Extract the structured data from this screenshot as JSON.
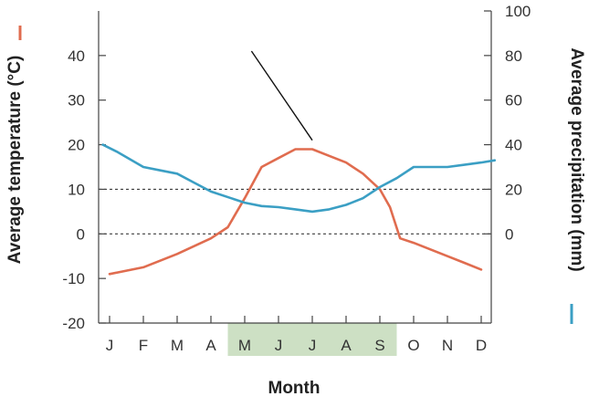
{
  "chart_data": {
    "type": "line",
    "xlabel": "Month",
    "categories": [
      "J",
      "F",
      "M",
      "A",
      "M",
      "J",
      "J",
      "A",
      "S",
      "O",
      "N",
      "D"
    ],
    "highlighted_categories": [
      4,
      5,
      6,
      7,
      8
    ],
    "highlight_color": "#cde0c4",
    "y_left": {
      "label": "Average temperature (°C)",
      "ylim": [
        -20,
        50
      ],
      "ticks": [
        -20,
        -10,
        0,
        10,
        20,
        30,
        40
      ],
      "tick_labels": [
        "-20",
        "-10",
        "0",
        "10",
        "20",
        "30",
        "40"
      ]
    },
    "y_right": {
      "label": "Average precipitation (mm)",
      "ylim": [
        -40,
        100
      ],
      "ticks": [
        0,
        20,
        40,
        60,
        80,
        100
      ],
      "tick_labels": [
        "0",
        "20",
        "40",
        "60",
        "80",
        "100"
      ]
    },
    "reference_lines": [
      {
        "axis": "left",
        "value": 10,
        "style": "dashed"
      },
      {
        "axis": "left",
        "value": 0,
        "style": "dashed"
      }
    ],
    "series": [
      {
        "axis": "left",
        "color": "#e06c4f",
        "x": [
          0,
          1,
          2,
          3,
          3.5,
          4,
          4.5,
          5,
          5.5,
          6,
          6.5,
          7,
          7.5,
          8,
          8.3,
          8.6,
          9,
          10,
          10.5,
          11
        ],
        "y": [
          -9,
          -7.5,
          -4.5,
          -1,
          1.5,
          8,
          15,
          17,
          19,
          19,
          17.5,
          16,
          13.5,
          10,
          6,
          -1,
          -2,
          -5,
          -6.5,
          -8
        ]
      },
      {
        "axis": "right",
        "color": "#3b9fc4",
        "x": [
          -0.2,
          0.2,
          1,
          1.5,
          2,
          2.5,
          3,
          4,
          4.5,
          5,
          5.5,
          6,
          6.5,
          7,
          7.5,
          8,
          8.5,
          9,
          9.5,
          10,
          10.5,
          11,
          11.4
        ],
        "y": [
          40,
          37,
          30,
          28.5,
          27,
          23,
          19,
          14,
          12.5,
          12,
          11,
          10,
          11,
          13,
          16,
          21,
          25,
          30,
          30,
          30,
          31,
          32,
          33
        ]
      }
    ],
    "annotation": {
      "type": "pointer-line",
      "from": [
        4.2,
        41
      ],
      "to": [
        6,
        21
      ]
    }
  }
}
